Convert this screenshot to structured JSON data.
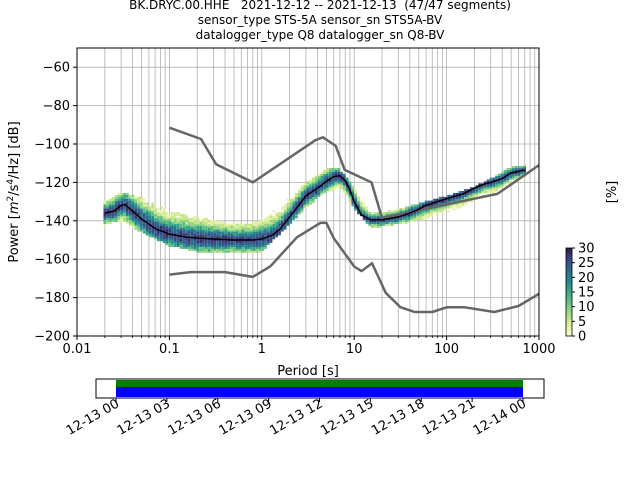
{
  "title": {
    "line1": "BK.DRYC.00.HHE   2021-12-12 -- 2021-12-13  (47/47 segments)",
    "line2": "sensor_type STS-5A sensor_sn STS5A-BV",
    "line3": "datalogger_type Q8 datalogger_sn Q8-BV"
  },
  "colors": {
    "noise_model": "#666666",
    "mean_curve": "#000000",
    "coverage_top": "#008000",
    "coverage_bottom": "#0000ff",
    "grid": "#b0b0b0"
  },
  "chart_data": [
    {
      "type": "heatmap",
      "xlabel": "Period [s]",
      "ylabel": "Power [m²/s⁴/Hz] [dB]",
      "ylabel_parts": {
        "pre": "Power [",
        "m": "m",
        "exp1": "2",
        "mid": "/s",
        "exp2": "4",
        "post": "/Hz] [dB]"
      },
      "x_scale": "log",
      "xlim": [
        0.01,
        1000
      ],
      "ylim": [
        -200,
        -50
      ],
      "x_ticks": [
        0.01,
        0.1,
        1,
        10,
        100,
        1000
      ],
      "x_tick_labels": [
        "0.01",
        "0.1",
        "1",
        "10",
        "100",
        "1000"
      ],
      "y_ticks": [
        -200,
        -180,
        -160,
        -140,
        -120,
        -100,
        -80,
        -60
      ],
      "y_tick_labels": [
        "−200",
        "−180",
        "−160",
        "−140",
        "−120",
        "−100",
        "−80",
        "−60"
      ],
      "grid": true,
      "noise_model_high": {
        "x": [
          0.1,
          0.22,
          0.32,
          0.8,
          3.8,
          4.6,
          6.3,
          7.9,
          15.4,
          20,
          354.8,
          1000
        ],
        "y": [
          -91.5,
          -97.4,
          -110.5,
          -120,
          -98,
          -96.5,
          -101,
          -113.5,
          -120,
          -138.5,
          -126,
          -111
        ]
      },
      "noise_model_low": {
        "x": [
          0.1,
          0.17,
          0.4,
          0.8,
          1.24,
          2.4,
          4.3,
          5,
          6,
          10,
          12,
          15.6,
          21.9,
          31.6,
          45,
          70,
          101,
          154,
          328,
          600,
          1000
        ],
        "y": [
          -168,
          -166.7,
          -166.7,
          -169.2,
          -163.7,
          -148.6,
          -141.1,
          -141.1,
          -149,
          -163.8,
          -166.2,
          -162.1,
          -177.5,
          -185,
          -187.5,
          -187.5,
          -185,
          -185,
          -187.5,
          -184.4,
          -178
        ]
      },
      "mean_psd": {
        "x": [
          0.02,
          0.025,
          0.03,
          0.033,
          0.04,
          0.05,
          0.07,
          0.1,
          0.15,
          0.2,
          0.3,
          0.5,
          0.8,
          1.0,
          1.3,
          1.6,
          2,
          2.5,
          3,
          4,
          5,
          6,
          7,
          8,
          9,
          10,
          12,
          15,
          20,
          30,
          40,
          50,
          60,
          80,
          100,
          150,
          200,
          250,
          300,
          400,
          500,
          700
        ],
        "y": [
          -136,
          -135,
          -132,
          -131.5,
          -135,
          -139,
          -144,
          -147,
          -148.5,
          -149,
          -149.5,
          -150,
          -150,
          -149.5,
          -147.5,
          -144,
          -138,
          -132,
          -127,
          -123,
          -119.5,
          -117,
          -116.5,
          -119,
          -124,
          -130,
          -137,
          -139.5,
          -139.5,
          -138,
          -136,
          -134,
          -132,
          -130,
          -128.5,
          -126,
          -123,
          -121,
          -120,
          -118,
          -115,
          -113.5
        ]
      },
      "histogram_band": {
        "x": [
          0.02,
          0.03,
          0.05,
          0.1,
          0.2,
          0.5,
          1.0,
          2,
          3,
          5,
          7,
          10,
          15,
          20,
          50,
          100,
          200,
          300,
          500,
          700
        ],
        "y_upper": [
          -130,
          -125,
          -128,
          -135,
          -138,
          -142,
          -140,
          -128,
          -120,
          -113,
          -113,
          -122,
          -136,
          -136,
          -131,
          -127,
          -122,
          -118,
          -112,
          -111
        ],
        "y_lower": [
          -142,
          -140,
          -146,
          -153,
          -156,
          -156,
          -156,
          -142,
          -133,
          -125,
          -123,
          -134,
          -143,
          -143,
          -140,
          -136,
          -130,
          -126,
          -120,
          -117
        ]
      },
      "colorbar": {
        "label": "[%]",
        "ticks": [
          0,
          5,
          10,
          15,
          20,
          25,
          30
        ],
        "tick_labels": [
          "0",
          "5",
          "10",
          "15",
          "20",
          "25",
          "30"
        ],
        "range": [
          0,
          30
        ]
      }
    },
    {
      "type": "bar",
      "description": "data coverage timeline",
      "x_tick_labels": [
        "12-13 00",
        "12-13 03",
        "12-13 06",
        "12-13 09",
        "12-13 12",
        "12-13 15",
        "12-13 18",
        "12-13 21",
        "12-14 00"
      ],
      "coverage_start": "12-13 00",
      "coverage_end": "12-14 00",
      "coverage_fraction": 1.0
    }
  ]
}
